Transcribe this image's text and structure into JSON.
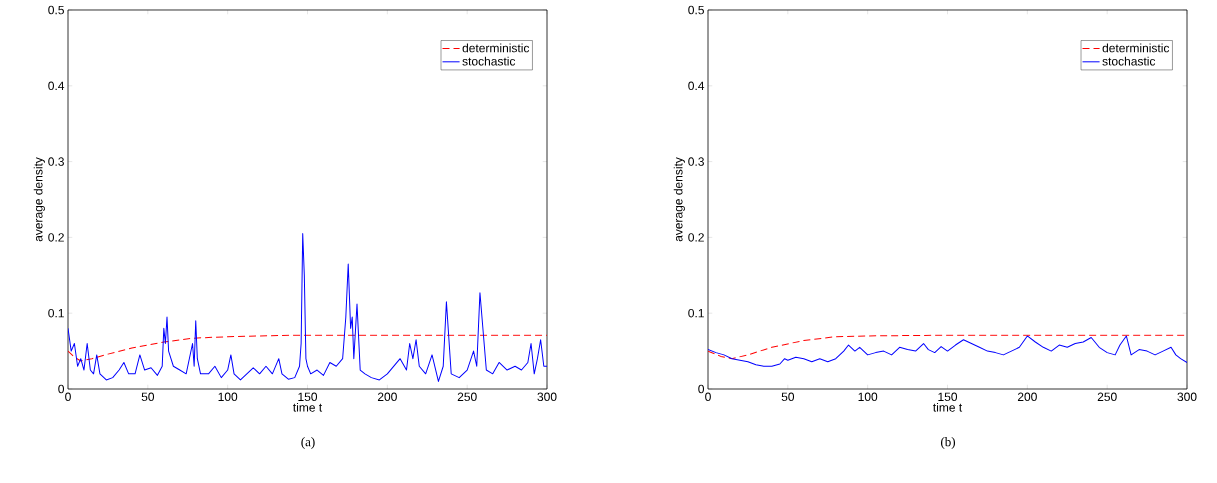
{
  "chart_data": [
    {
      "type": "line",
      "xlabel": "time t",
      "ylabel": "average density",
      "xlim": [
        0,
        300
      ],
      "ylim": [
        0,
        0.5
      ],
      "xticks": [
        0,
        50,
        100,
        150,
        200,
        250,
        300
      ],
      "yticks": [
        0,
        0.1,
        0.2,
        0.3,
        0.4,
        0.5
      ],
      "legend": "top right",
      "annotations": [
        "(a)"
      ],
      "series": [
        {
          "name": "deterministic",
          "color": "#ff0000",
          "line_style": "dashed",
          "x": [
            0,
            4,
            8,
            15,
            25,
            40,
            60,
            78,
            100,
            120,
            140,
            170,
            200,
            250,
            300
          ],
          "values": [
            0.05,
            0.042,
            0.037,
            0.04,
            0.046,
            0.054,
            0.062,
            0.067,
            0.069,
            0.07,
            0.071,
            0.071,
            0.071,
            0.071,
            0.071
          ]
        },
        {
          "name": "stochastic",
          "color": "#0000ff",
          "line_style": "solid",
          "x": [
            0,
            2,
            4,
            6,
            8,
            10,
            12,
            14,
            16,
            18,
            20,
            24,
            28,
            32,
            35,
            38,
            42,
            45,
            48,
            52,
            56,
            59,
            60,
            61,
            62,
            63,
            66,
            70,
            74,
            78,
            79,
            80,
            81,
            83,
            88,
            92,
            96,
            100,
            102,
            104,
            108,
            112,
            116,
            120,
            124,
            128,
            132,
            134,
            138,
            142,
            145,
            146,
            147,
            148,
            149,
            150,
            152,
            156,
            160,
            164,
            168,
            172,
            174,
            175.5,
            177,
            178,
            179,
            181,
            183,
            186,
            190,
            195,
            200,
            204,
            208,
            212,
            214,
            216,
            218,
            220,
            224,
            228,
            232,
            235,
            237,
            240,
            245,
            250,
            254,
            256,
            258,
            262,
            266,
            270,
            275,
            280,
            284,
            288,
            290,
            292,
            294,
            296,
            298,
            300
          ],
          "values": [
            0.08,
            0.05,
            0.06,
            0.03,
            0.04,
            0.025,
            0.06,
            0.025,
            0.02,
            0.045,
            0.02,
            0.012,
            0.015,
            0.025,
            0.035,
            0.02,
            0.02,
            0.045,
            0.025,
            0.028,
            0.018,
            0.03,
            0.08,
            0.06,
            0.095,
            0.05,
            0.03,
            0.025,
            0.02,
            0.06,
            0.03,
            0.09,
            0.04,
            0.02,
            0.02,
            0.03,
            0.015,
            0.025,
            0.045,
            0.02,
            0.012,
            0.02,
            0.028,
            0.02,
            0.03,
            0.02,
            0.04,
            0.02,
            0.013,
            0.015,
            0.03,
            0.06,
            0.205,
            0.15,
            0.04,
            0.03,
            0.02,
            0.025,
            0.018,
            0.035,
            0.03,
            0.04,
            0.095,
            0.165,
            0.08,
            0.095,
            0.04,
            0.112,
            0.025,
            0.02,
            0.015,
            0.012,
            0.02,
            0.03,
            0.04,
            0.025,
            0.06,
            0.04,
            0.065,
            0.03,
            0.02,
            0.045,
            0.01,
            0.03,
            0.115,
            0.02,
            0.015,
            0.025,
            0.05,
            0.03,
            0.127,
            0.025,
            0.02,
            0.035,
            0.025,
            0.03,
            0.025,
            0.035,
            0.06,
            0.02,
            0.04,
            0.065,
            0.03,
            0.03
          ]
        }
      ]
    },
    {
      "type": "line",
      "xlabel": "time t",
      "ylabel": "average density",
      "xlim": [
        0,
        300
      ],
      "ylim": [
        0,
        0.5
      ],
      "xticks": [
        0,
        50,
        100,
        150,
        200,
        250,
        300
      ],
      "yticks": [
        0,
        0.1,
        0.2,
        0.3,
        0.4,
        0.5
      ],
      "legend": "top right",
      "annotations": [
        "(b)"
      ],
      "series": [
        {
          "name": "deterministic",
          "color": "#ff0000",
          "line_style": "dashed",
          "x": [
            0,
            8,
            15,
            25,
            40,
            60,
            80,
            100,
            150,
            200,
            250,
            300
          ],
          "values": [
            0.05,
            0.043,
            0.04,
            0.045,
            0.055,
            0.064,
            0.069,
            0.07,
            0.071,
            0.071,
            0.071,
            0.071
          ]
        },
        {
          "name": "stochastic",
          "color": "#0000ff",
          "line_style": "solid",
          "x": [
            0,
            5,
            10,
            15,
            20,
            25,
            30,
            35,
            40,
            45,
            48,
            50,
            55,
            60,
            65,
            70,
            75,
            80,
            85,
            88,
            92,
            95,
            100,
            105,
            110,
            115,
            120,
            125,
            130,
            135,
            138,
            142,
            146,
            150,
            155,
            160,
            165,
            170,
            175,
            180,
            185,
            190,
            195,
            200,
            205,
            210,
            215,
            220,
            225,
            230,
            235,
            240,
            245,
            250,
            255,
            258,
            262,
            265,
            270,
            275,
            280,
            285,
            290,
            293,
            296,
            300
          ],
          "values": [
            0.052,
            0.048,
            0.045,
            0.04,
            0.038,
            0.036,
            0.032,
            0.03,
            0.03,
            0.033,
            0.04,
            0.038,
            0.042,
            0.04,
            0.036,
            0.04,
            0.036,
            0.04,
            0.05,
            0.058,
            0.05,
            0.055,
            0.045,
            0.048,
            0.05,
            0.045,
            0.055,
            0.052,
            0.05,
            0.06,
            0.052,
            0.048,
            0.056,
            0.05,
            0.058,
            0.065,
            0.06,
            0.055,
            0.05,
            0.048,
            0.045,
            0.05,
            0.055,
            0.07,
            0.062,
            0.055,
            0.05,
            0.058,
            0.055,
            0.06,
            0.062,
            0.068,
            0.055,
            0.048,
            0.045,
            0.058,
            0.07,
            0.045,
            0.052,
            0.05,
            0.045,
            0.05,
            0.055,
            0.045,
            0.04,
            0.035
          ]
        }
      ]
    }
  ]
}
